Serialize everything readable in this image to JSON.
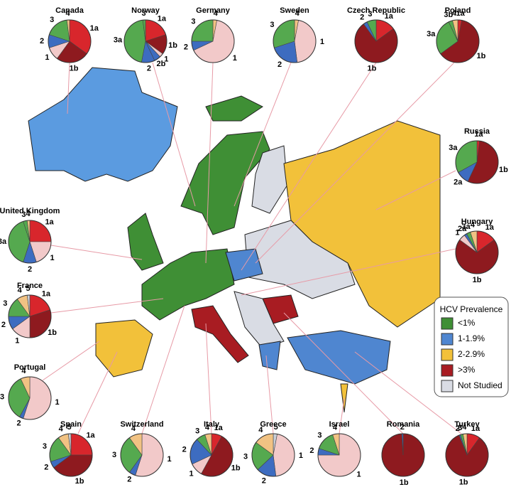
{
  "pies": [
    {
      "country": "Canada",
      "slices": [
        {
          "label": "1a",
          "value": 35
        },
        {
          "label": "1b",
          "value": 25
        },
        {
          "label": "1",
          "value": 10
        },
        {
          "label": "2",
          "value": 10
        },
        {
          "label": "3",
          "value": 18
        },
        {
          "label": "4",
          "value": 2
        }
      ]
    },
    {
      "country": "Norway",
      "slices": [
        {
          "label": "1a",
          "value": 20
        },
        {
          "label": "1b",
          "value": 15
        },
        {
          "label": "1",
          "value": 3
        },
        {
          "label": "2b",
          "value": 5
        },
        {
          "label": "2",
          "value": 10
        },
        {
          "label": "3a",
          "value": 45
        },
        {
          "label": "3",
          "value": 2
        }
      ]
    },
    {
      "country": "Germany",
      "slices": [
        {
          "label": "4",
          "value": 3
        },
        {
          "label": "1",
          "value": 65
        },
        {
          "label": "2",
          "value": 7
        },
        {
          "label": "3",
          "value": 25
        }
      ]
    },
    {
      "country": "Sweden",
      "slices": [
        {
          "label": "4",
          "value": 3
        },
        {
          "label": "1",
          "value": 45
        },
        {
          "label": "2",
          "value": 22
        },
        {
          "label": "3",
          "value": 30
        }
      ]
    },
    {
      "country": "Czech Republic",
      "slices": [
        {
          "label": "1a",
          "value": 15
        },
        {
          "label": "1b",
          "value": 75
        },
        {
          "label": "2",
          "value": 3
        },
        {
          "label": "3",
          "value": 7
        }
      ]
    },
    {
      "country": "Poland",
      "slices": [
        {
          "label": "1a",
          "value": 3
        },
        {
          "label": "1b",
          "value": 62
        },
        {
          "label": "3a",
          "value": 28
        },
        {
          "label": "3b",
          "value": 3
        },
        {
          "label": "4",
          "value": 4
        }
      ]
    },
    {
      "country": "Russia",
      "slices": [
        {
          "label": "1a",
          "value": 2
        },
        {
          "label": "1b",
          "value": 55
        },
        {
          "label": "2a",
          "value": 10
        },
        {
          "label": "3a",
          "value": 33
        }
      ]
    },
    {
      "country": "United Kingdom",
      "slices": [
        {
          "label": "1a",
          "value": 25
        },
        {
          "label": "1",
          "value": 20
        },
        {
          "label": "2",
          "value": 10
        },
        {
          "label": "3a",
          "value": 40
        },
        {
          "label": "3",
          "value": 3
        },
        {
          "label": "4",
          "value": 2
        }
      ]
    },
    {
      "country": "Hungary",
      "slices": [
        {
          "label": "1a",
          "value": 15
        },
        {
          "label": "1b",
          "value": 70
        },
        {
          "label": "1",
          "value": 5
        },
        {
          "label": "2a",
          "value": 2
        },
        {
          "label": "3a",
          "value": 3
        },
        {
          "label": "4",
          "value": 5
        }
      ]
    },
    {
      "country": "France",
      "slices": [
        {
          "label": "1a",
          "value": 20
        },
        {
          "label": "1b",
          "value": 30
        },
        {
          "label": "1",
          "value": 15
        },
        {
          "label": "2",
          "value": 10
        },
        {
          "label": "3",
          "value": 15
        },
        {
          "label": "4",
          "value": 8
        },
        {
          "label": "5",
          "value": 2
        }
      ]
    },
    {
      "country": "Portugal",
      "slices": [
        {
          "label": "1",
          "value": 55
        },
        {
          "label": "2",
          "value": 3
        },
        {
          "label": "3",
          "value": 35
        },
        {
          "label": "4",
          "value": 7
        }
      ]
    },
    {
      "country": "Spain",
      "slices": [
        {
          "label": "1a",
          "value": 25
        },
        {
          "label": "1b",
          "value": 40
        },
        {
          "label": "2",
          "value": 5
        },
        {
          "label": "3",
          "value": 20
        },
        {
          "label": "4",
          "value": 8
        },
        {
          "label": "5",
          "value": 2
        }
      ]
    },
    {
      "country": "Switzerland",
      "slices": [
        {
          "label": "1",
          "value": 55
        },
        {
          "label": "2",
          "value": 5
        },
        {
          "label": "3",
          "value": 30
        },
        {
          "label": "4",
          "value": 10
        }
      ]
    },
    {
      "country": "Italy",
      "slices": [
        {
          "label": "1a",
          "value": 8
        },
        {
          "label": "1b",
          "value": 50
        },
        {
          "label": "1",
          "value": 10
        },
        {
          "label": "2",
          "value": 20
        },
        {
          "label": "3",
          "value": 7
        },
        {
          "label": "4",
          "value": 5
        }
      ]
    },
    {
      "country": "Greece",
      "slices": [
        {
          "label": "5",
          "value": 3
        },
        {
          "label": "1",
          "value": 45
        },
        {
          "label": "2",
          "value": 15
        },
        {
          "label": "3",
          "value": 22
        },
        {
          "label": "4",
          "value": 15
        }
      ]
    },
    {
      "country": "Israel",
      "slices": [
        {
          "label": "1",
          "value": 75
        },
        {
          "label": "2",
          "value": 5
        },
        {
          "label": "3",
          "value": 15
        },
        {
          "label": "4",
          "value": 5
        }
      ]
    },
    {
      "country": "Romania",
      "slices": [
        {
          "label": "1b",
          "value": 99
        },
        {
          "label": "2",
          "value": 1
        }
      ]
    },
    {
      "country": "Turkey",
      "slices": [
        {
          "label": "1a",
          "value": 10
        },
        {
          "label": "1b",
          "value": 84
        },
        {
          "label": "2",
          "value": 1
        },
        {
          "label": "3",
          "value": 2
        },
        {
          "label": "4",
          "value": 3
        }
      ]
    }
  ],
  "genotype_colors": {
    "1a": "#d8262c",
    "1b": "#8e1a1f",
    "1": "#f2c9c9",
    "2": "#3d6cc0",
    "2a": "#3d6cc0",
    "2b": "#3d6cc0",
    "3": "#55a94f",
    "3a": "#55a94f",
    "3b": "#55a94f",
    "4": "#f1c283",
    "5": "#c9cdd6"
  },
  "legend": {
    "title": "HCV Prevalence",
    "items": [
      {
        "label": "<1%",
        "color": "#3f8f35"
      },
      {
        "label": "1-1.9%",
        "color": "#4f86d0"
      },
      {
        "label": "2-2.9%",
        "color": "#f2c13a"
      },
      {
        "label": ">3%",
        "color": "#a81c22"
      },
      {
        "label": "Not Studied",
        "color": "#d9dce4"
      }
    ]
  }
}
